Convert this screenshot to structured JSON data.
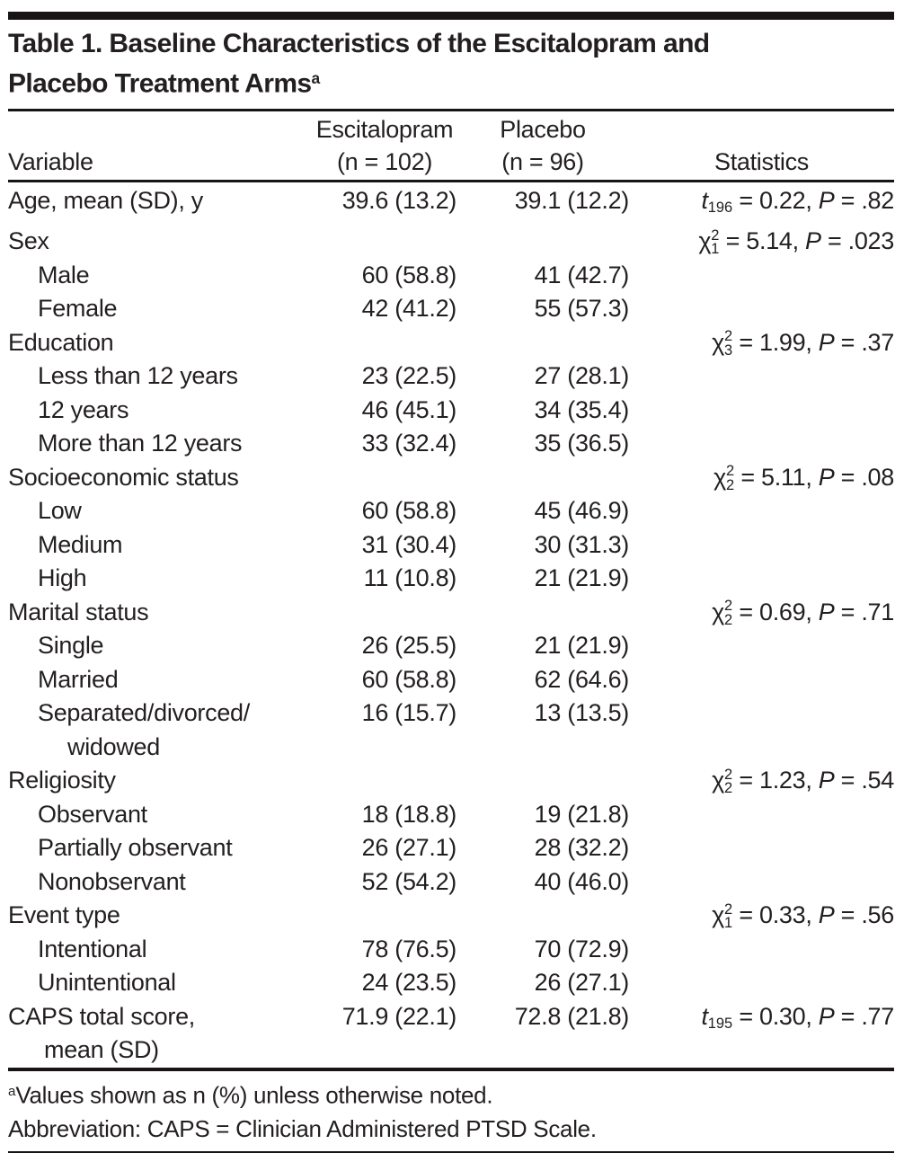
{
  "title": {
    "line1": "Table 1. Baseline Characteristics of the Escitalopram and",
    "line2": "Placebo Treatment Arms",
    "footnote_marker": "a"
  },
  "header": {
    "col1_label": "Variable",
    "col2_line1": "Escitalopram",
    "col2_line2": "(n = 102)",
    "col3_line1": "Placebo",
    "col3_line2": "(n = 96)",
    "col4_label": "Statistics"
  },
  "rows": [
    {
      "label": "Age, mean (SD), y",
      "indent": 0,
      "escitalopram": "39.6 (13.2)",
      "placebo": "39.1 (12.2)",
      "stat": {
        "sym": "t",
        "sup": "",
        "sub": "196",
        "mid": " = 0.22, ",
        "p": "P",
        "tail": " = .82"
      }
    },
    {
      "label": "Sex",
      "indent": 0,
      "escitalopram": "",
      "placebo": "",
      "stat": {
        "sym": "χ",
        "sup": "2",
        "sub": "1",
        "mid": " = 5.14, ",
        "p": "P",
        "tail": " = .023"
      }
    },
    {
      "label": "Male",
      "indent": 1,
      "escitalopram": "60 (58.8)",
      "placebo": "41 (42.7)",
      "stat": null
    },
    {
      "label": "Female",
      "indent": 1,
      "escitalopram": "42 (41.2)",
      "placebo": "55 (57.3)",
      "stat": null
    },
    {
      "label": "Education",
      "indent": 0,
      "escitalopram": "",
      "placebo": "",
      "stat": {
        "sym": "χ",
        "sup": "2",
        "sub": "3",
        "mid": " = 1.99, ",
        "p": "P",
        "tail": " = .37"
      }
    },
    {
      "label": "Less than 12 years",
      "indent": 1,
      "escitalopram": "23 (22.5)",
      "placebo": "27 (28.1)",
      "stat": null
    },
    {
      "label": "12 years",
      "indent": 1,
      "escitalopram": "46 (45.1)",
      "placebo": "34 (35.4)",
      "stat": null
    },
    {
      "label": "More than 12 years",
      "indent": 1,
      "escitalopram": "33 (32.4)",
      "placebo": "35 (36.5)",
      "stat": null
    },
    {
      "label": "Socioeconomic status",
      "indent": 0,
      "escitalopram": "",
      "placebo": "",
      "stat": {
        "sym": "χ",
        "sup": "2",
        "sub": "2",
        "mid": " = 5.11, ",
        "p": "P",
        "tail": " = .08"
      }
    },
    {
      "label": "Low",
      "indent": 1,
      "escitalopram": "60 (58.8)",
      "placebo": "45 (46.9)",
      "stat": null
    },
    {
      "label": "Medium",
      "indent": 1,
      "escitalopram": "31 (30.4)",
      "placebo": "30 (31.3)",
      "stat": null
    },
    {
      "label": "High",
      "indent": 1,
      "escitalopram": "11 (10.8)",
      "placebo": "21 (21.9)",
      "stat": null
    },
    {
      "label": "Marital status",
      "indent": 0,
      "escitalopram": "",
      "placebo": "",
      "stat": {
        "sym": "χ",
        "sup": "2",
        "sub": "2",
        "mid": " = 0.69, ",
        "p": "P",
        "tail": " = .71"
      }
    },
    {
      "label": "Single",
      "indent": 1,
      "escitalopram": "26 (25.5)",
      "placebo": "21 (21.9)",
      "stat": null
    },
    {
      "label": "Married",
      "indent": 1,
      "escitalopram": "60 (58.8)",
      "placebo": "62 (64.6)",
      "stat": null
    },
    {
      "label": "Separated/divorced/",
      "label2": "widowed",
      "indent": 1,
      "escitalopram": "16 (15.7)",
      "placebo": "13 (13.5)",
      "stat": null
    },
    {
      "label": "Religiosity",
      "indent": 0,
      "escitalopram": "",
      "placebo": "",
      "stat": {
        "sym": "χ",
        "sup": "2",
        "sub": "2",
        "mid": " = 1.23, ",
        "p": "P",
        "tail": " = .54"
      }
    },
    {
      "label": "Observant",
      "indent": 1,
      "escitalopram": "18 (18.8)",
      "placebo": "19 (21.8)",
      "stat": null
    },
    {
      "label": "Partially observant",
      "indent": 1,
      "escitalopram": "26 (27.1)",
      "placebo": "28 (32.2)",
      "stat": null
    },
    {
      "label": "Nonobservant",
      "indent": 1,
      "escitalopram": "52 (54.2)",
      "placebo": "40 (46.0)",
      "stat": null
    },
    {
      "label": "Event type",
      "indent": 0,
      "escitalopram": "",
      "placebo": "",
      "stat": {
        "sym": "χ",
        "sup": "2",
        "sub": "1",
        "mid": " = 0.33, ",
        "p": "P",
        "tail": " = .56"
      }
    },
    {
      "label": "Intentional",
      "indent": 1,
      "escitalopram": "78 (76.5)",
      "placebo": "70 (72.9)",
      "stat": null
    },
    {
      "label": "Unintentional",
      "indent": 1,
      "escitalopram": "24 (23.5)",
      "placebo": "26 (27.1)",
      "stat": null
    },
    {
      "label": "CAPS total score,",
      "label2": "mean (SD)",
      "indent": 0,
      "escitalopram": "71.9 (22.1)",
      "placebo": "72.8 (21.8)",
      "stat": {
        "sym": "t",
        "sup": "",
        "sub": "195",
        "mid": " = 0.30, ",
        "p": "P",
        "tail": " = .77"
      }
    }
  ],
  "footnotes": [
    {
      "marker": "a",
      "text": "Values shown as n (%) unless otherwise noted."
    },
    {
      "marker": "",
      "text": "Abbreviation: CAPS = Clinician Administered PTSD Scale."
    }
  ]
}
